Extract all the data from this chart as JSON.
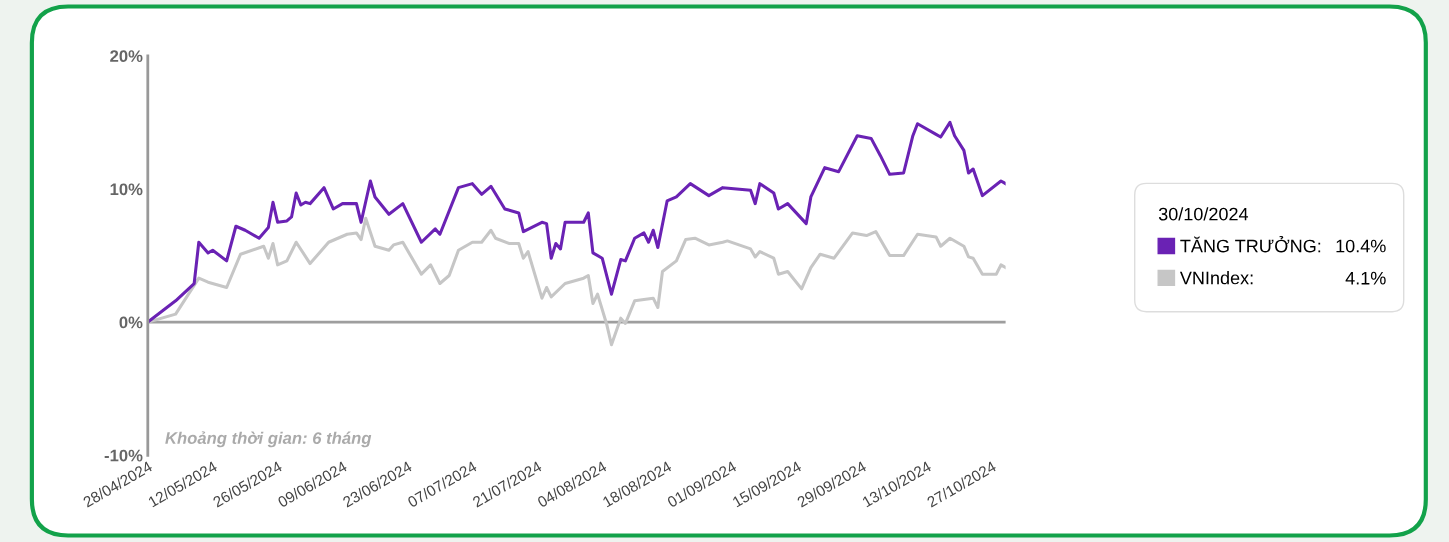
{
  "chart_data": {
    "type": "line",
    "xlim": [
      "2024-04-28",
      "2024-10-30"
    ],
    "xticks": [
      {
        "value": "2024-04-28",
        "label": "28/04/2024"
      },
      {
        "value": "2024-05-12",
        "label": "12/05/2024"
      },
      {
        "value": "2024-05-26",
        "label": "26/05/2024"
      },
      {
        "value": "2024-06-09",
        "label": "09/06/2024"
      },
      {
        "value": "2024-06-23",
        "label": "23/06/2024"
      },
      {
        "value": "2024-07-07",
        "label": "07/07/2024"
      },
      {
        "value": "2024-07-21",
        "label": "21/07/2024"
      },
      {
        "value": "2024-08-04",
        "label": "04/08/2024"
      },
      {
        "value": "2024-08-18",
        "label": "18/08/2024"
      },
      {
        "value": "2024-09-01",
        "label": "01/09/2024"
      },
      {
        "value": "2024-09-15",
        "label": "15/09/2024"
      },
      {
        "value": "2024-09-29",
        "label": "29/09/2024"
      },
      {
        "value": "2024-10-13",
        "label": "13/10/2024"
      },
      {
        "value": "2024-10-27",
        "label": "27/10/2024"
      }
    ],
    "ylim": [
      -10,
      20
    ],
    "yticks": [
      {
        "value": -10,
        "label": "-10%"
      },
      {
        "value": 0,
        "label": "0%"
      },
      {
        "value": 10,
        "label": "10%"
      },
      {
        "value": 20,
        "label": "20%"
      }
    ],
    "grid": false,
    "legend": "right",
    "legend_title": "30/10/2024",
    "ref_lines": [
      {
        "axis": "y",
        "value": 0,
        "color": "#9e9e9e"
      }
    ],
    "annotations": [
      "Khoảng thời gian: 6 tháng",
      "10.4%",
      "4.1%"
    ],
    "series": [
      {
        "name": "VNIndex:",
        "color": "#c6c6c6",
        "x": [
          "2024-04-28",
          "2024-05-04",
          "2024-05-09",
          "2024-05-11",
          "2024-05-15",
          "2024-05-18",
          "2024-05-23",
          "2024-05-24",
          "2024-05-25",
          "2024-05-26",
          "2024-05-28",
          "2024-05-30",
          "2024-06-02",
          "2024-06-06",
          "2024-06-10",
          "2024-06-12",
          "2024-06-13",
          "2024-06-14",
          "2024-06-16",
          "2024-06-19",
          "2024-06-20",
          "2024-06-22",
          "2024-06-26",
          "2024-06-28",
          "2024-06-30",
          "2024-07-02",
          "2024-07-04",
          "2024-07-07",
          "2024-07-09",
          "2024-07-11",
          "2024-07-12",
          "2024-07-15",
          "2024-07-17",
          "2024-07-18",
          "2024-07-19",
          "2024-07-22",
          "2024-07-23",
          "2024-07-24",
          "2024-07-27",
          "2024-07-31",
          "2024-08-01",
          "2024-08-02",
          "2024-08-03",
          "2024-08-05",
          "2024-08-06",
          "2024-08-08",
          "2024-08-09",
          "2024-08-11",
          "2024-08-15",
          "2024-08-16",
          "2024-08-17",
          "2024-08-20",
          "2024-08-22",
          "2024-08-24",
          "2024-08-27",
          "2024-08-30",
          "2024-08-31",
          "2024-09-05",
          "2024-09-06",
          "2024-09-07",
          "2024-09-10",
          "2024-09-11",
          "2024-09-13",
          "2024-09-16",
          "2024-09-18",
          "2024-09-20",
          "2024-09-23",
          "2024-09-27",
          "2024-09-30",
          "2024-10-02",
          "2024-10-05",
          "2024-10-08",
          "2024-10-11",
          "2024-10-15",
          "2024-10-16",
          "2024-10-18",
          "2024-10-21",
          "2024-10-22",
          "2024-10-23",
          "2024-10-25",
          "2024-10-28",
          "2024-10-29",
          "2024-10-30"
        ],
        "values": [
          0,
          0.6,
          3.3,
          3.0,
          2.6,
          5.1,
          5.7,
          4.8,
          5.9,
          4.3,
          4.6,
          6.0,
          4.4,
          6.0,
          6.6,
          6.7,
          6.2,
          7.8,
          5.7,
          5.4,
          5.8,
          6.0,
          3.6,
          4.3,
          2.9,
          3.5,
          5.4,
          6.0,
          6.0,
          6.9,
          6.3,
          5.9,
          5.9,
          4.8,
          5.3,
          1.8,
          2.6,
          1.9,
          2.9,
          3.3,
          3.5,
          1.4,
          2.1,
          -0.2,
          -1.7,
          0.3,
          -0.1,
          1.6,
          1.8,
          1.1,
          3.8,
          4.6,
          6.2,
          6.3,
          5.8,
          6.0,
          6.1,
          5.5,
          4.9,
          5.3,
          4.8,
          3.6,
          3.8,
          2.5,
          4.1,
          5.1,
          4.8,
          6.7,
          6.5,
          6.8,
          5.0,
          5.0,
          6.6,
          6.4,
          5.7,
          6.3,
          5.7,
          4.9,
          4.8,
          3.6,
          3.6,
          4.3,
          4.1
        ]
      },
      {
        "name": "TĂNG TRƯỞNG:",
        "color": "#6a22b4",
        "x": [
          "2024-04-28",
          "2024-05-04",
          "2024-05-08",
          "2024-05-09",
          "2024-05-11",
          "2024-05-12",
          "2024-05-15",
          "2024-05-17",
          "2024-05-19",
          "2024-05-22",
          "2024-05-24",
          "2024-05-25",
          "2024-05-26",
          "2024-05-28",
          "2024-05-29",
          "2024-05-30",
          "2024-05-31",
          "2024-06-01",
          "2024-06-02",
          "2024-06-05",
          "2024-06-07",
          "2024-06-09",
          "2024-06-12",
          "2024-06-13",
          "2024-06-15",
          "2024-06-16",
          "2024-06-19",
          "2024-06-22",
          "2024-06-26",
          "2024-06-29",
          "2024-06-30",
          "2024-07-04",
          "2024-07-07",
          "2024-07-09",
          "2024-07-11",
          "2024-07-14",
          "2024-07-17",
          "2024-07-18",
          "2024-07-22",
          "2024-07-23",
          "2024-07-24",
          "2024-07-25",
          "2024-07-26",
          "2024-07-27",
          "2024-07-31",
          "2024-08-01",
          "2024-08-02",
          "2024-08-04",
          "2024-08-06",
          "2024-08-08",
          "2024-08-09",
          "2024-08-11",
          "2024-08-13",
          "2024-08-14",
          "2024-08-15",
          "2024-08-16",
          "2024-08-18",
          "2024-08-20",
          "2024-08-23",
          "2024-08-27",
          "2024-08-30",
          "2024-09-05",
          "2024-09-06",
          "2024-09-07",
          "2024-09-10",
          "2024-09-11",
          "2024-09-13",
          "2024-09-17",
          "2024-09-18",
          "2024-09-21",
          "2024-09-24",
          "2024-09-28",
          "2024-10-01",
          "2024-10-03",
          "2024-10-05",
          "2024-10-08",
          "2024-10-10",
          "2024-10-11",
          "2024-10-15",
          "2024-10-16",
          "2024-10-18",
          "2024-10-19",
          "2024-10-21",
          "2024-10-22",
          "2024-10-23",
          "2024-10-25",
          "2024-10-29",
          "2024-10-30"
        ],
        "values": [
          0,
          1.6,
          2.9,
          6.0,
          5.2,
          5.4,
          4.6,
          7.2,
          6.9,
          6.3,
          7.1,
          9.0,
          7.5,
          7.6,
          7.9,
          9.7,
          8.8,
          9.0,
          8.9,
          10.1,
          8.5,
          8.9,
          8.9,
          7.5,
          10.6,
          9.4,
          8.1,
          8.9,
          6.0,
          7.0,
          6.6,
          10.1,
          10.4,
          9.6,
          10.2,
          8.5,
          8.2,
          6.8,
          7.5,
          7.4,
          4.8,
          5.9,
          5.5,
          7.5,
          7.5,
          8.2,
          5.2,
          4.8,
          2.1,
          4.7,
          4.6,
          6.3,
          6.7,
          6.0,
          6.9,
          5.6,
          9.1,
          9.4,
          10.4,
          9.5,
          10.1,
          9.9,
          8.9,
          10.4,
          9.7,
          8.5,
          8.9,
          7.4,
          9.4,
          11.6,
          11.3,
          14.0,
          13.8,
          12.5,
          11.1,
          11.2,
          14.0,
          14.9,
          14.1,
          13.9,
          15.0,
          14.0,
          12.9,
          11.2,
          11.5,
          9.5,
          10.6,
          10.4
        ]
      }
    ]
  }
}
